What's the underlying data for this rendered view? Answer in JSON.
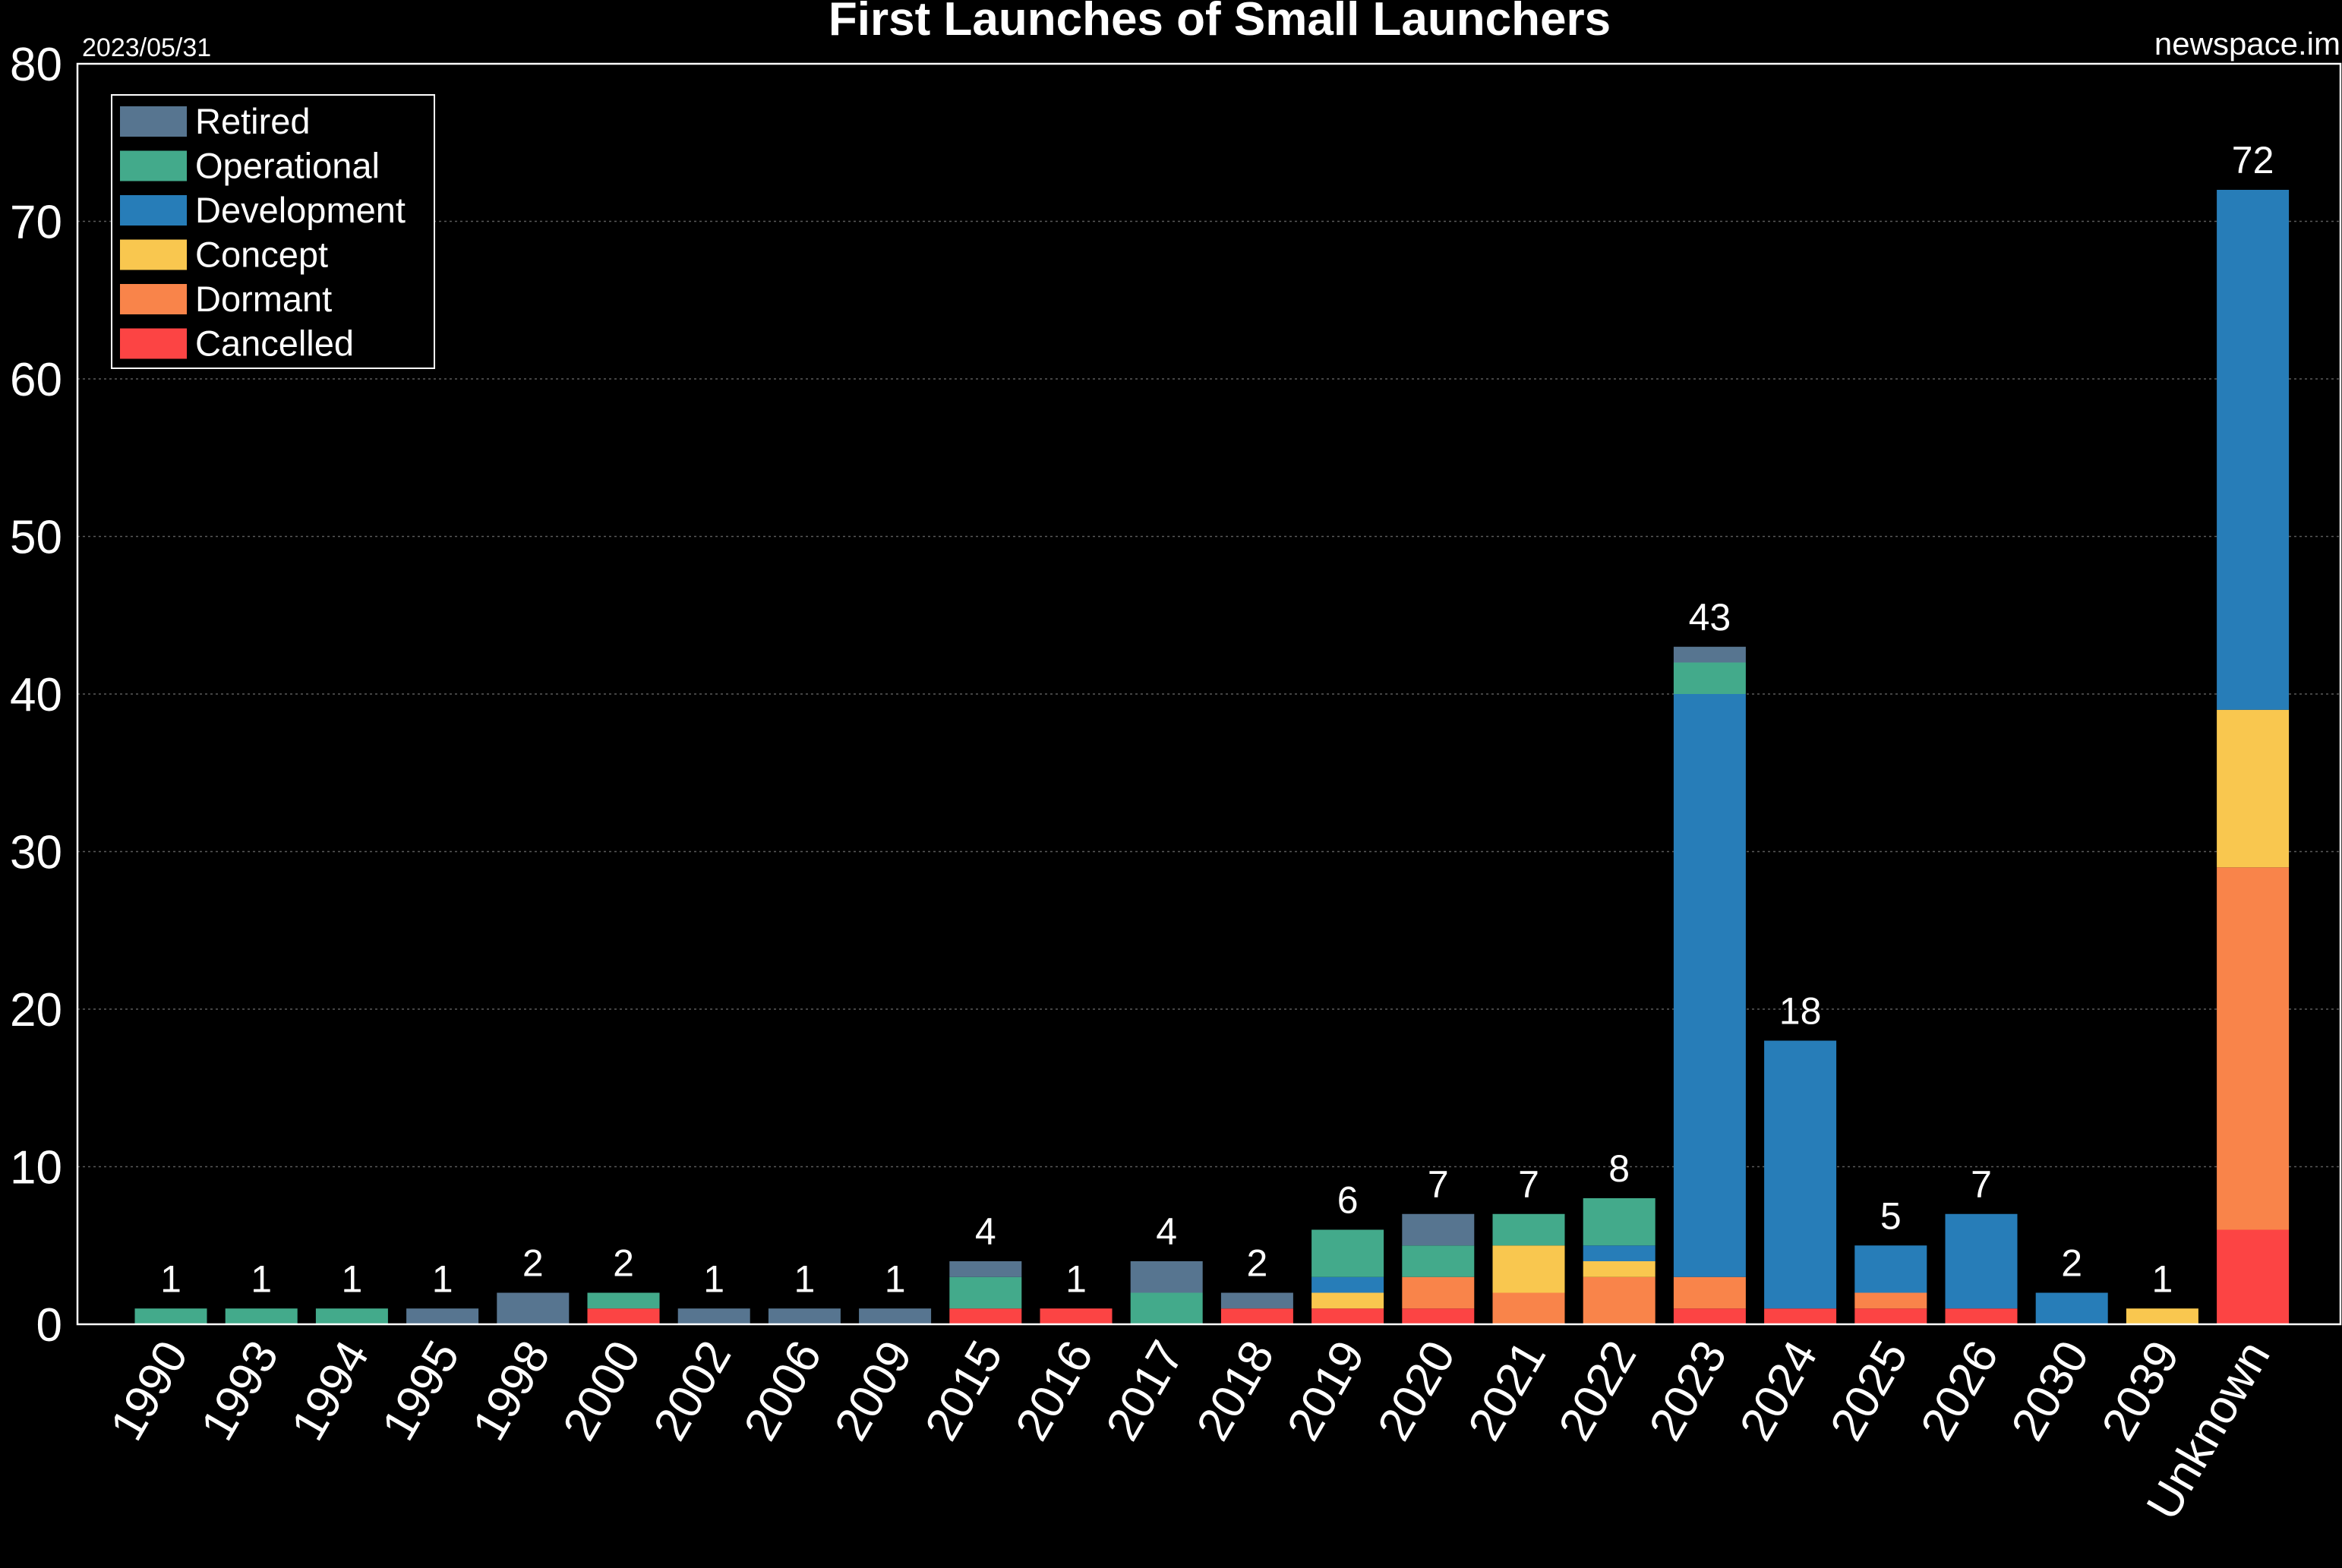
{
  "chart_data": {
    "type": "bar",
    "stacked": true,
    "title": "First Launches of Small Launchers",
    "date_label": "2023/05/31",
    "source_label": "newspace.im",
    "xlabel": "",
    "ylabel": "",
    "ylim": [
      0,
      80
    ],
    "yticks": [
      0,
      10,
      20,
      30,
      40,
      50,
      60,
      70,
      80
    ],
    "grid": true,
    "legend_position": "top-left",
    "categories": [
      "1990",
      "1993",
      "1994",
      "1995",
      "1998",
      "2000",
      "2002",
      "2006",
      "2009",
      "2015",
      "2016",
      "2017",
      "2018",
      "2019",
      "2020",
      "2021",
      "2022",
      "2023",
      "2024",
      "2025",
      "2026",
      "2030",
      "2039",
      "Unknown"
    ],
    "series": [
      {
        "name": "Cancelled",
        "color": "#fc4444",
        "values": [
          0,
          0,
          0,
          0,
          0,
          1,
          0,
          0,
          0,
          1,
          1,
          0,
          1,
          1,
          1,
          0,
          0,
          1,
          1,
          1,
          1,
          0,
          0,
          6
        ]
      },
      {
        "name": "Dormant",
        "color": "#f9844a",
        "values": [
          0,
          0,
          0,
          0,
          0,
          0,
          0,
          0,
          0,
          0,
          0,
          0,
          0,
          0,
          2,
          2,
          3,
          2,
          0,
          1,
          0,
          0,
          0,
          23
        ]
      },
      {
        "name": "Concept",
        "color": "#f9c74f",
        "values": [
          0,
          0,
          0,
          0,
          0,
          0,
          0,
          0,
          0,
          0,
          0,
          0,
          0,
          1,
          0,
          3,
          1,
          0,
          0,
          0,
          0,
          0,
          1,
          10
        ]
      },
      {
        "name": "Development",
        "color": "#277db8",
        "values": [
          0,
          0,
          0,
          0,
          0,
          0,
          0,
          0,
          0,
          0,
          0,
          0,
          0,
          1,
          0,
          0,
          1,
          37,
          17,
          3,
          6,
          2,
          0,
          33
        ]
      },
      {
        "name": "Operational",
        "color": "#43aa8b",
        "values": [
          1,
          1,
          1,
          0,
          0,
          1,
          0,
          0,
          0,
          2,
          0,
          2,
          0,
          3,
          2,
          2,
          3,
          2,
          0,
          0,
          0,
          0,
          0,
          0
        ]
      },
      {
        "name": "Retired",
        "color": "#577590",
        "values": [
          0,
          0,
          0,
          1,
          2,
          0,
          1,
          1,
          1,
          1,
          0,
          2,
          1,
          0,
          2,
          0,
          0,
          1,
          0,
          0,
          0,
          0,
          0,
          0
        ]
      }
    ],
    "totals": [
      1,
      1,
      1,
      1,
      2,
      2,
      1,
      1,
      1,
      4,
      1,
      4,
      2,
      6,
      7,
      7,
      8,
      43,
      18,
      5,
      7,
      2,
      1,
      72
    ],
    "legend_order": [
      "Retired",
      "Operational",
      "Development",
      "Concept",
      "Dormant",
      "Cancelled"
    ]
  }
}
